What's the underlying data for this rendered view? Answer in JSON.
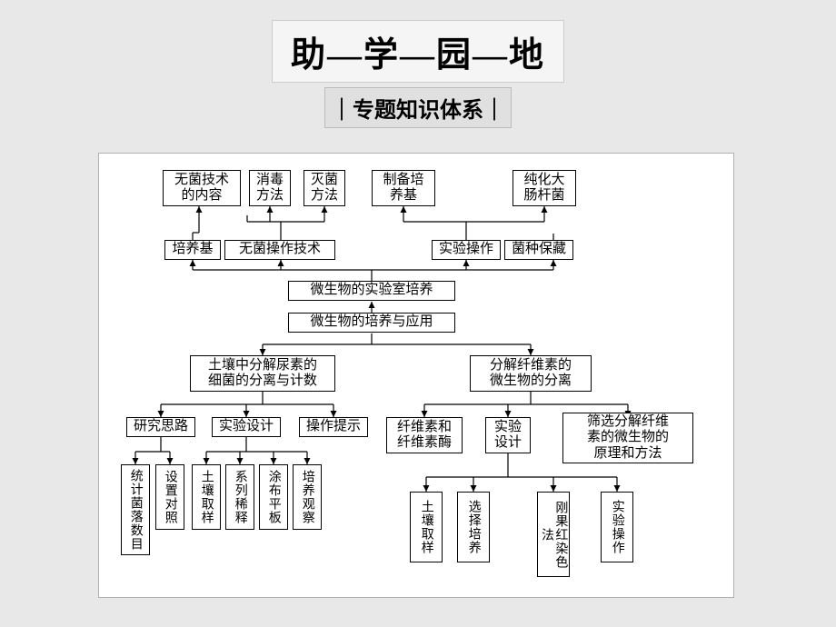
{
  "title": "助—学—园—地",
  "subtitle": "｜专题知识体系｜",
  "diagram": {
    "bg": "#ffffff",
    "nodes": {
      "n_wujun_neirong": "无菌技术<br>的内容",
      "n_xiaodu": "消毒<br>方法",
      "n_miejun": "灭菌<br>方法",
      "n_zhibei": "制备培<br>养基",
      "n_chunhua": "纯化大<br>肠杆菌",
      "n_peiyangji": "培养基",
      "n_wujuncaozuo": "无菌操作技术",
      "n_shiyancz": "实验操作",
      "n_junzhong": "菌种保藏",
      "n_shiyanshi": "微生物的实验室培养",
      "n_peiyangyy": "微生物的培养与应用",
      "n_turang_niaosu": "土壤中分解尿素的<br>细菌的分离与计数",
      "n_fenjie_xianwei": "分解纤维素的<br>微生物的分离",
      "n_yanjiu": "研究思路",
      "n_shiyansj1": "实验设计",
      "n_caozuots": "操作提示",
      "n_xianweisu": "纤维素和<br>纤维素酶",
      "n_shiyan_sj2": "实验<br>设计",
      "n_shaixuan": "筛选分解纤维<br>素的微生物的<br>原理和方法",
      "v_tongji": "统计菌落数目",
      "v_shezhi": "设置对照",
      "v_turang1": "土壤取样",
      "v_xilie": "系列稀释",
      "v_tubu": "涂布平板",
      "v_peiyang_gc": "培养观察",
      "v_turang2": "土壤取样",
      "v_xuanze": "选择培养",
      "v_gangguo": "刚果红染色法",
      "v_shiyan_cz": "实验操作"
    }
  }
}
